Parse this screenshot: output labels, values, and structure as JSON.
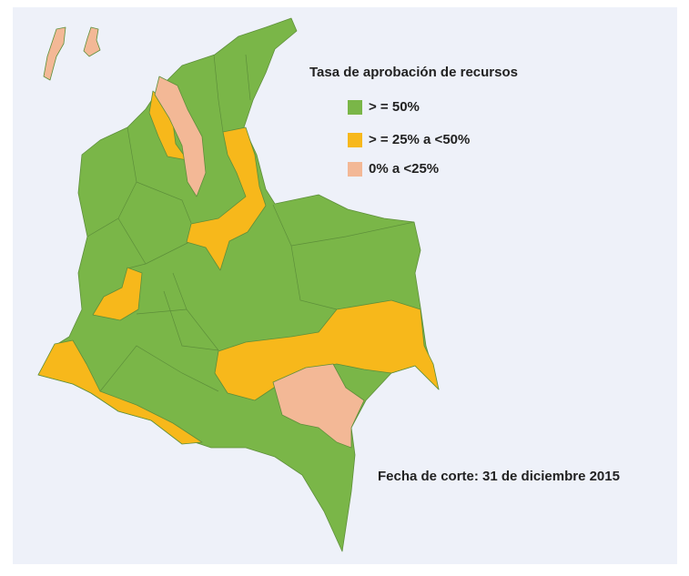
{
  "legend": {
    "title": "Tasa de aprobación de recursos",
    "items": [
      {
        "label": "> = 50%",
        "color": "#7ab648"
      },
      {
        "label": "> = 25% a <50%",
        "color": "#f7b81b"
      },
      {
        "label": "0% a <25%",
        "color": "#f3b896"
      }
    ]
  },
  "note": "Fecha de corte: 31 de diciembre 2015"
}
